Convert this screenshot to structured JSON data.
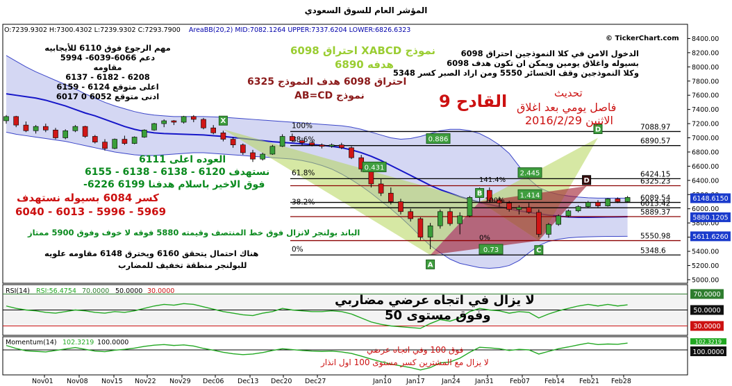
{
  "page": {
    "title": "المؤشر العام للسوق السعودي",
    "copyright": "© TickerChart.com",
    "info": {
      "o": "O:7239.9302",
      "h": "H:7300.4302",
      "l": "L:7239.9302",
      "c": "C:7293.7900",
      "area": "AreaBB(20,2)",
      "mid": "MID:7082.1264",
      "upper": "UPPER:7337.6204",
      "lower": "LOWER:6826.6323"
    }
  },
  "annotations": {
    "left_block": [
      "مهم الرجوع فوق 6110 للأيجابيه",
      "دعم 6066-6039- 5994",
      "مقاومه",
      "6208 - 6182 - 6137",
      "اعلى متوقع 6124 - 6159",
      "ادنى متوقع 6052 0 6017"
    ],
    "pattern_1": "نموذج XABCD احتراق 6098",
    "pattern_1_target": "هدفه 6890",
    "pattern_2": "احتراق 6098 هدف النموذج 6325",
    "pattern_2_name": "نموذج AB=CD",
    "right_block": [
      "الدخول الامن في كلا النموذجين احتراق 6098",
      "بسيوله واغلاق يومين ويمكن ان تكون هدف 6098",
      "وكلا النموذجين وقف الخسائر 5550 ومن اراد الصبر كسر 5348"
    ],
    "update_title": "تحديث",
    "qadeh": "القادح 9",
    "update_line1": "فاصل يومي بعد اغلاق",
    "update_line2": "الاثنين 2016/2/29",
    "return_above": "العوده اعلى 6111",
    "targets_1": "نستهدف 6120 - 6138 - 6138 - 6155",
    "targets_2": "فوق الاخير باسلام هدفنا 6199 6226-",
    "break_1": "كسر 6084 بسيوله نستهدف",
    "break_2": "5969 - 5996 - 6013 - 6040",
    "bollinger": "الباند بولنجر لانزال فوق خط المنتصف وقيمته 5880 فوقه لا خوف وفوق 5900 ممتاز",
    "prob_1": "هناك احتمال يتحقق 6160 ويخترق 6148 مقاومه علويه",
    "prob_2": "للبولنجر منطقة تخفيف للمضارب",
    "rsi_1": "لا يزال في اتجاه عرضي مضاربي",
    "rsi_2": "وفوق مستوى 50",
    "mom_1": "فوق 100 وفي اتجاه عرضي",
    "mom_2": "لا يزال مع المشترين كسر مستوى 100 اول انذار"
  },
  "rsi_panel": {
    "label": "RSI(14)",
    "value": "RSI:56.4754",
    "lvl70": "70.0000",
    "lvl50": "50.0000",
    "lvl30": "30.0000",
    "box70": "70.0000",
    "box50": "50.0000",
    "box30": "30.0000"
  },
  "momentum_panel": {
    "label": "Momentum(14)",
    "value": "102.3219",
    "lvl100": "100.0000",
    "box100": "100.0000",
    "box_top": "102.3219"
  },
  "chart_data": {
    "type": "candlestick",
    "title": "المؤشر العام للسوق السعودي",
    "y_ticks": [
      5000,
      5200,
      5400,
      5600,
      5800,
      6000,
      6200,
      6400,
      6600,
      6800,
      7000,
      7200,
      7400,
      7600,
      7800,
      8000,
      8200,
      8400
    ],
    "y_tick_labels": [
      "5000.00",
      "5200.00",
      "5400.00",
      "5600.00",
      "5800.00",
      "6000.00",
      "6200.00",
      "6400.00",
      "6600.00",
      "6800.00",
      "7000.00",
      "7200.00",
      "7400.00",
      "7600.00",
      "7800.00",
      "8000.00",
      "8200.00",
      "8400.00"
    ],
    "x_labels": [
      "Nov01",
      "Nov08",
      "Nov15",
      "Nov22",
      "Nov29",
      "Dec06",
      "Dec13",
      "Dec20",
      "Dec27",
      "Jan10",
      "Jan17",
      "Jan24",
      "Jan31",
      "Feb07",
      "Feb14",
      "Feb21",
      "Feb28"
    ],
    "ylim": [
      4950,
      8600
    ],
    "candles": [
      [
        7240,
        7320,
        7200,
        7300
      ],
      [
        7300,
        7310,
        7150,
        7180
      ],
      [
        7180,
        7230,
        7080,
        7100
      ],
      [
        7100,
        7180,
        7060,
        7160
      ],
      [
        7160,
        7200,
        7080,
        7110
      ],
      [
        7110,
        7140,
        6980,
        7000
      ],
      [
        7000,
        7120,
        6980,
        7100
      ],
      [
        7100,
        7180,
        7080,
        7160
      ],
      [
        7160,
        7170,
        7000,
        7020
      ],
      [
        7020,
        7040,
        6920,
        6940
      ],
      [
        6940,
        6980,
        6820,
        6850
      ],
      [
        6850,
        6990,
        6840,
        6980
      ],
      [
        6980,
        7030,
        6900,
        6920
      ],
      [
        6920,
        7020,
        6910,
        7010
      ],
      [
        7010,
        7120,
        7000,
        7110
      ],
      [
        7110,
        7210,
        7100,
        7200
      ],
      [
        7200,
        7260,
        7150,
        7240
      ],
      [
        7240,
        7250,
        7180,
        7220
      ],
      [
        7220,
        7310,
        7200,
        7300
      ],
      [
        7300,
        7320,
        7220,
        7260
      ],
      [
        7260,
        7280,
        7120,
        7140
      ],
      [
        7140,
        7180,
        7050,
        7070
      ],
      [
        7070,
        7100,
        6950,
        6980
      ],
      [
        6980,
        7010,
        6860,
        6900
      ],
      [
        6900,
        6920,
        6760,
        6790
      ],
      [
        6790,
        6830,
        6660,
        6700
      ],
      [
        6700,
        6790,
        6680,
        6770
      ],
      [
        6770,
        6900,
        6760,
        6880
      ],
      [
        6880,
        7050,
        6870,
        7020
      ],
      [
        7020,
        7060,
        6940,
        6960
      ],
      [
        6960,
        7000,
        6890,
        6930
      ],
      [
        6930,
        6960,
        6880,
        6900
      ],
      [
        6900,
        6920,
        6850,
        6880
      ],
      [
        6880,
        6920,
        6860,
        6900
      ],
      [
        6900,
        6930,
        6840,
        6860
      ],
      [
        6860,
        6880,
        6700,
        6720
      ],
      [
        6720,
        6760,
        6520,
        6560
      ],
      [
        6560,
        6580,
        6300,
        6350
      ],
      [
        6350,
        6420,
        6180,
        6220
      ],
      [
        6220,
        6300,
        6060,
        6100
      ],
      [
        6100,
        6140,
        5920,
        5960
      ],
      [
        5960,
        6000,
        5820,
        5860
      ],
      [
        5860,
        5880,
        5560,
        5600
      ],
      [
        5600,
        5800,
        5430,
        5760
      ],
      [
        5760,
        5990,
        5720,
        5960
      ],
      [
        5960,
        6010,
        5760,
        5790
      ],
      [
        5790,
        5950,
        5640,
        5900
      ],
      [
        5900,
        6180,
        5880,
        6160
      ],
      [
        6160,
        6300,
        6100,
        6260
      ],
      [
        6260,
        6300,
        6080,
        6120
      ],
      [
        6120,
        6170,
        6030,
        6080
      ],
      [
        6080,
        6110,
        5960,
        5990
      ],
      [
        5990,
        6050,
        5920,
        6020
      ],
      [
        6020,
        6080,
        5930,
        5950
      ],
      [
        5950,
        5990,
        5600,
        5640
      ],
      [
        5640,
        5800,
        5590,
        5780
      ],
      [
        5780,
        5920,
        5760,
        5900
      ],
      [
        5900,
        5990,
        5880,
        5970
      ],
      [
        5970,
        6050,
        5950,
        6030
      ],
      [
        6030,
        6110,
        6010,
        6090
      ],
      [
        6090,
        6120,
        6020,
        6040
      ],
      [
        6040,
        6150,
        6030,
        6140
      ],
      [
        6140,
        6160,
        6080,
        6100
      ],
      [
        6100,
        6180,
        6090,
        6160
      ]
    ],
    "series": [
      {
        "name": "MID",
        "values": [
          7620,
          7600,
          7580,
          7560,
          7530,
          7490,
          7450,
          7400,
          7350,
          7310,
          7260,
          7210,
          7160,
          7120,
          7090,
          7070,
          7060,
          7055,
          7050,
          7045,
          7040,
          7030,
          7020,
          7005,
          6990,
          6975,
          6960,
          6945,
          6935,
          6925,
          6915,
          6905,
          6895,
          6880,
          6860,
          6830,
          6790,
          6740,
          6680,
          6610,
          6540,
          6470,
          6400,
          6330,
          6270,
          6220,
          6170,
          6130,
          6090,
          6060,
          6030,
          6000,
          5970,
          5950,
          5930,
          5910,
          5895,
          5885,
          5880,
          5880,
          5882,
          5884,
          5886,
          5888
        ]
      },
      {
        "name": "UPPER",
        "values": [
          8160,
          8080,
          8000,
          7930,
          7870,
          7810,
          7750,
          7690,
          7620,
          7560,
          7500,
          7450,
          7410,
          7370,
          7340,
          7320,
          7310,
          7300,
          7300,
          7300,
          7300,
          7295,
          7290,
          7280,
          7270,
          7260,
          7250,
          7240,
          7230,
          7220,
          7210,
          7200,
          7190,
          7180,
          7170,
          7150,
          7120,
          7080,
          7040,
          7000,
          6980,
          6990,
          7020,
          7060,
          7100,
          7120,
          7120,
          7100,
          7060,
          6990,
          6900,
          6780,
          6600,
          6420,
          6300,
          6240,
          6200,
          6180,
          6165,
          6155,
          6150,
          6150,
          6150,
          6149
        ]
      },
      {
        "name": "LOWER",
        "values": [
          7080,
          7050,
          7030,
          7010,
          6990,
          6970,
          6950,
          6920,
          6890,
          6860,
          6830,
          6800,
          6780,
          6760,
          6750,
          6750,
          6760,
          6770,
          6780,
          6790,
          6790,
          6780,
          6770,
          6760,
          6750,
          6740,
          6730,
          6720,
          6710,
          6700,
          6680,
          6650,
          6610,
          6560,
          6490,
          6410,
          6320,
          6220,
          6110,
          6000,
          5880,
          5750,
          5610,
          5480,
          5380,
          5290,
          5230,
          5200,
          5170,
          5160,
          5170,
          5200,
          5270,
          5380,
          5480,
          5540,
          5570,
          5590,
          5600,
          5605,
          5608,
          5610,
          5611,
          5612
        ]
      }
    ],
    "fib_levels": [
      {
        "label": "100%",
        "value": 7088.97,
        "value_label": "7088.97"
      },
      {
        "label": "88.6%",
        "value": 6890.57,
        "value_label": "6890.57"
      },
      {
        "label": "61.8%",
        "value": 6424.15,
        "value_label": "6424.15"
      },
      {
        "label": "",
        "value": 6325.23,
        "value_label": "6325.23"
      },
      {
        "label": "",
        "value": 6089.54,
        "value_label": "6089.54"
      },
      {
        "label": "38.2%",
        "value": 6013.42,
        "value_label": "6013.42"
      },
      {
        "label": "",
        "value": 5889.37,
        "value_label": "5889.37"
      },
      {
        "label": "",
        "value": 5550.98,
        "value_label": "5550.98"
      },
      {
        "label": "0%",
        "value": 5348.6,
        "value_label": "5348.6"
      }
    ],
    "harmonic_points": {
      "X": {
        "i": 22,
        "v": 7120
      },
      "A": {
        "i": 43,
        "v": 5348
      },
      "B": {
        "i": 48,
        "v": 6100
      },
      "C": {
        "i": 54,
        "v": 5550
      },
      "D": {
        "i": 60,
        "v": 7000
      },
      "D2": {
        "i": 58,
        "v": 6400
      }
    },
    "ratios": [
      {
        "label": "0.886",
        "v": 6980
      },
      {
        "label": "0.431",
        "v": 6580
      },
      {
        "label": "2.445",
        "v": 6500
      },
      {
        "label": "1.414",
        "v": 6190
      },
      {
        "label": "0.73",
        "v": 5420
      }
    ],
    "in_chart_pcts": [
      "141.4%",
      "100%",
      "0%"
    ],
    "price_boxes": [
      {
        "label": "6148.6150",
        "value": 6148.615,
        "color": "#1a3bcc"
      },
      {
        "label": "5880.1205",
        "value": 5880.1205,
        "color": "#1a3bcc"
      },
      {
        "label": "5611.6260",
        "value": 5611.626,
        "color": "#1a3bcc"
      }
    ],
    "rsi_values": [
      55,
      52,
      50,
      49,
      47,
      46,
      48,
      50,
      49,
      47,
      46,
      48,
      47,
      49,
      52,
      55,
      57,
      56,
      58,
      57,
      54,
      51,
      48,
      46,
      44,
      43,
      46,
      48,
      52,
      50,
      49,
      48,
      48,
      49,
      48,
      45,
      40,
      35,
      32,
      30,
      29,
      28,
      27,
      33,
      38,
      36,
      40,
      48,
      52,
      50,
      49,
      46,
      48,
      47,
      40,
      45,
      49,
      52,
      55,
      57,
      55,
      57,
      55,
      56.5
    ],
    "momentum_values": [
      101.5,
      100.5,
      99.7,
      99.5,
      99.3,
      99.8,
      100.3,
      100.8,
      100.2,
      99.6,
      99.4,
      99.9,
      100.2,
      100.6,
      101.2,
      101.6,
      101.8,
      101.5,
      101.7,
      101.3,
      100.5,
      99.9,
      99.2,
      98.7,
      98.4,
      98.6,
      99.1,
      99.8,
      100.4,
      100.1,
      99.8,
      99.6,
      99.5,
      99.6,
      99.3,
      98.8,
      97.9,
      96.9,
      96.0,
      95.2,
      94.6,
      94.0,
      93.2,
      94.0,
      95.6,
      95.9,
      97.2,
      99.2,
      100.9,
      100.7,
      100.4,
      99.8,
      100.2,
      100.0,
      98.6,
      99.5,
      100.4,
      101.0,
      101.7,
      102.3,
      101.8,
      102.0,
      101.9,
      102.32
    ]
  }
}
